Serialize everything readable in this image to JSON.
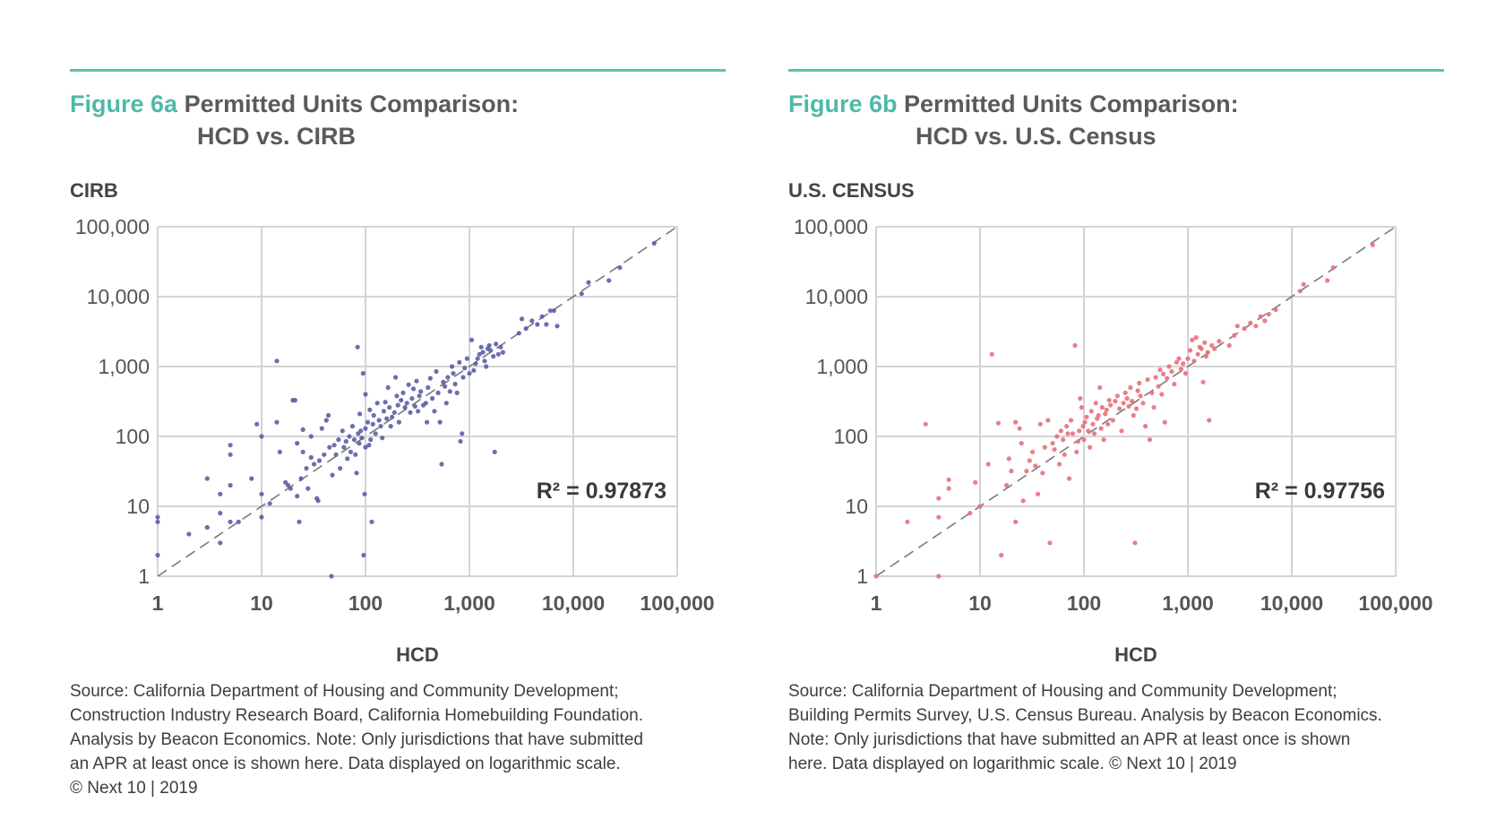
{
  "panels": [
    {
      "fig_label": "Figure 6a",
      "title_line1": "Permitted Units Comparison:",
      "title_line2": "HCD vs. CIRB",
      "source_lines": [
        "Source: California Department of Housing and Community Development;",
        "Construction Industry Research Board, California Homebuilding Foundation.",
        "Analysis by Beacon Economics. Note: Only jurisdictions that have submitted",
        "an APR at least once is shown here. Data displayed on logarithmic scale.",
        "© Next 10 | 2019"
      ]
    },
    {
      "fig_label": "Figure 6b",
      "title_line1": "Permitted Units Comparison:",
      "title_line2": "HCD vs. U.S. Census",
      "source_lines": [
        "Source: California Department of Housing and Community Development;",
        "Building Permits Survey, U.S. Census Bureau. Analysis by Beacon Economics.",
        "Note: Only jurisdictions that have submitted an APR at least once is shown",
        "here. Data displayed on logarithmic scale. © Next 10 | 2019"
      ]
    }
  ],
  "colors": {
    "accent": "#4fb9a8",
    "rule": "#5fbfb0",
    "series_a": "#5b5ea6",
    "series_b": "#e8707a",
    "grid": "#d4d4d4",
    "diagonal": "#7a7a7a"
  },
  "chart_data": [
    {
      "type": "scatter",
      "title": "Permitted Units Comparison: HCD vs. CIRB",
      "xlabel": "HCD",
      "ylabel": "CIRB",
      "xscale": "log",
      "yscale": "log",
      "xlim": [
        1,
        100000
      ],
      "ylim": [
        1,
        100000
      ],
      "x_ticks": [
        "1",
        "10",
        "100",
        "1,000",
        "10,000",
        "100,000"
      ],
      "y_ticks": [
        "1",
        "10",
        "100",
        "1,000",
        "10,000",
        "100,000"
      ],
      "grid": true,
      "reference_line": "y = x",
      "annotation": "R² = 0.97873",
      "points": [
        [
          1,
          7
        ],
        [
          1,
          6
        ],
        [
          1,
          2
        ],
        [
          2,
          4
        ],
        [
          3,
          25
        ],
        [
          3,
          5
        ],
        [
          4,
          15
        ],
        [
          4,
          3
        ],
        [
          5,
          75
        ],
        [
          5,
          55
        ],
        [
          5,
          20
        ],
        [
          5,
          6
        ],
        [
          6,
          6
        ],
        [
          4,
          8
        ],
        [
          8,
          25
        ],
        [
          9,
          150
        ],
        [
          10,
          100
        ],
        [
          10,
          7
        ],
        [
          10,
          15
        ],
        [
          12,
          11
        ],
        [
          14,
          1200
        ],
        [
          14,
          160
        ],
        [
          15,
          60
        ],
        [
          17,
          22
        ],
        [
          18,
          20
        ],
        [
          19,
          18
        ],
        [
          20,
          330
        ],
        [
          21,
          330
        ],
        [
          22,
          80
        ],
        [
          22,
          14
        ],
        [
          23,
          6
        ],
        [
          24,
          25
        ],
        [
          25,
          60
        ],
        [
          25,
          125
        ],
        [
          27,
          35
        ],
        [
          28,
          18
        ],
        [
          30,
          50
        ],
        [
          30,
          100
        ],
        [
          32,
          40
        ],
        [
          34,
          13
        ],
        [
          35,
          12
        ],
        [
          36,
          45
        ],
        [
          38,
          130
        ],
        [
          40,
          55
        ],
        [
          42,
          170
        ],
        [
          44,
          200
        ],
        [
          45,
          70
        ],
        [
          47,
          1
        ],
        [
          48,
          28
        ],
        [
          50,
          75
        ],
        [
          52,
          55
        ],
        [
          55,
          90
        ],
        [
          57,
          35
        ],
        [
          60,
          120
        ],
        [
          62,
          70
        ],
        [
          65,
          85
        ],
        [
          67,
          48
        ],
        [
          70,
          100
        ],
        [
          72,
          60
        ],
        [
          75,
          140
        ],
        [
          78,
          90
        ],
        [
          80,
          55
        ],
        [
          82,
          30
        ],
        [
          84,
          1900
        ],
        [
          85,
          110
        ],
        [
          87,
          80
        ],
        [
          88,
          210
        ],
        [
          90,
          120
        ],
        [
          92,
          95
        ],
        [
          95,
          800
        ],
        [
          96,
          2
        ],
        [
          98,
          15
        ],
        [
          100,
          70
        ],
        [
          100,
          400
        ],
        [
          100,
          130
        ],
        [
          105,
          160
        ],
        [
          108,
          75
        ],
        [
          110,
          240
        ],
        [
          112,
          90
        ],
        [
          115,
          6
        ],
        [
          118,
          150
        ],
        [
          120,
          200
        ],
        [
          125,
          110
        ],
        [
          130,
          300
        ],
        [
          135,
          170
        ],
        [
          140,
          140
        ],
        [
          145,
          95
        ],
        [
          150,
          230
        ],
        [
          155,
          310
        ],
        [
          160,
          180
        ],
        [
          165,
          500
        ],
        [
          170,
          260
        ],
        [
          175,
          140
        ],
        [
          180,
          190
        ],
        [
          190,
          220
        ],
        [
          195,
          700
        ],
        [
          200,
          380
        ],
        [
          205,
          280
        ],
        [
          210,
          160
        ],
        [
          220,
          330
        ],
        [
          230,
          420
        ],
        [
          240,
          260
        ],
        [
          250,
          300
        ],
        [
          260,
          550
        ],
        [
          270,
          220
        ],
        [
          280,
          350
        ],
        [
          290,
          480
        ],
        [
          300,
          270
        ],
        [
          310,
          620
        ],
        [
          320,
          230
        ],
        [
          330,
          380
        ],
        [
          340,
          440
        ],
        [
          360,
          280
        ],
        [
          380,
          300
        ],
        [
          390,
          160
        ],
        [
          400,
          500
        ],
        [
          420,
          680
        ],
        [
          440,
          350
        ],
        [
          460,
          230
        ],
        [
          480,
          850
        ],
        [
          500,
          420
        ],
        [
          520,
          160
        ],
        [
          540,
          40
        ],
        [
          560,
          600
        ],
        [
          580,
          520
        ],
        [
          600,
          300
        ],
        [
          620,
          700
        ],
        [
          650,
          440
        ],
        [
          680,
          1000
        ],
        [
          700,
          800
        ],
        [
          730,
          560
        ],
        [
          760,
          420
        ],
        [
          800,
          1150
        ],
        [
          820,
          85
        ],
        [
          850,
          110
        ],
        [
          870,
          700
        ],
        [
          900,
          950
        ],
        [
          950,
          1300
        ],
        [
          1000,
          800
        ],
        [
          1050,
          2400
        ],
        [
          1100,
          880
        ],
        [
          1150,
          1100
        ],
        [
          1200,
          1300
        ],
        [
          1250,
          1500
        ],
        [
          1300,
          1900
        ],
        [
          1350,
          1600
        ],
        [
          1400,
          1200
        ],
        [
          1450,
          1000
        ],
        [
          1500,
          1800
        ],
        [
          1550,
          2000
        ],
        [
          1600,
          1700
        ],
        [
          1700,
          1400
        ],
        [
          1750,
          60
        ],
        [
          1800,
          2100
        ],
        [
          1900,
          1500
        ],
        [
          2000,
          1900
        ],
        [
          2100,
          1600
        ],
        [
          3000,
          3000
        ],
        [
          3200,
          4800
        ],
        [
          3500,
          3500
        ],
        [
          4000,
          4500
        ],
        [
          4500,
          4000
        ],
        [
          5000,
          5200
        ],
        [
          5500,
          4000
        ],
        [
          6000,
          6300
        ],
        [
          6500,
          6300
        ],
        [
          7000,
          3800
        ],
        [
          12000,
          11000
        ],
        [
          14000,
          16000
        ],
        [
          22000,
          17000
        ],
        [
          28000,
          26000
        ],
        [
          60000,
          58000
        ]
      ]
    },
    {
      "type": "scatter",
      "title": "Permitted Units Comparison: HCD vs. U.S. Census",
      "xlabel": "HCD",
      "ylabel": "U.S. CENSUS",
      "xscale": "log",
      "yscale": "log",
      "xlim": [
        1,
        100000
      ],
      "ylim": [
        1,
        100000
      ],
      "x_ticks": [
        "1",
        "10",
        "100",
        "1,000",
        "10,000",
        "100,000"
      ],
      "y_ticks": [
        "1",
        "10",
        "100",
        "1,000",
        "10,000",
        "100,000"
      ],
      "grid": true,
      "reference_line": "y = x",
      "annotation": "R² = 0.97756",
      "points": [
        [
          1,
          1
        ],
        [
          2,
          6
        ],
        [
          3,
          150
        ],
        [
          4,
          1
        ],
        [
          4,
          7
        ],
        [
          4,
          13
        ],
        [
          5,
          18
        ],
        [
          5,
          24
        ],
        [
          8,
          8
        ],
        [
          9,
          22
        ],
        [
          10,
          10
        ],
        [
          12,
          40
        ],
        [
          13,
          1500
        ],
        [
          15,
          155
        ],
        [
          16,
          2
        ],
        [
          18,
          20
        ],
        [
          19,
          48
        ],
        [
          20,
          32
        ],
        [
          22,
          6
        ],
        [
          22,
          160
        ],
        [
          24,
          130
        ],
        [
          25,
          80
        ],
        [
          26,
          12
        ],
        [
          28,
          32
        ],
        [
          30,
          45
        ],
        [
          32,
          60
        ],
        [
          34,
          38
        ],
        [
          36,
          15
        ],
        [
          38,
          150
        ],
        [
          40,
          30
        ],
        [
          42,
          70
        ],
        [
          45,
          170
        ],
        [
          47,
          3
        ],
        [
          50,
          80
        ],
        [
          52,
          65
        ],
        [
          55,
          100
        ],
        [
          58,
          40
        ],
        [
          60,
          120
        ],
        [
          63,
          90
        ],
        [
          65,
          55
        ],
        [
          68,
          140
        ],
        [
          70,
          110
        ],
        [
          72,
          25
        ],
        [
          75,
          170
        ],
        [
          78,
          110
        ],
        [
          82,
          2000
        ],
        [
          85,
          60
        ],
        [
          88,
          85
        ],
        [
          90,
          120
        ],
        [
          92,
          350
        ],
        [
          95,
          260
        ],
        [
          98,
          140
        ],
        [
          100,
          90
        ],
        [
          102,
          160
        ],
        [
          106,
          190
        ],
        [
          110,
          120
        ],
        [
          114,
          70
        ],
        [
          118,
          230
        ],
        [
          122,
          150
        ],
        [
          126,
          110
        ],
        [
          130,
          300
        ],
        [
          134,
          180
        ],
        [
          138,
          200
        ],
        [
          142,
          500
        ],
        [
          146,
          130
        ],
        [
          150,
          260
        ],
        [
          155,
          90
        ],
        [
          160,
          210
        ],
        [
          165,
          240
        ],
        [
          170,
          150
        ],
        [
          175,
          330
        ],
        [
          180,
          280
        ],
        [
          190,
          170
        ],
        [
          200,
          320
        ],
        [
          210,
          380
        ],
        [
          220,
          250
        ],
        [
          230,
          120
        ],
        [
          240,
          300
        ],
        [
          250,
          420
        ],
        [
          260,
          350
        ],
        [
          270,
          270
        ],
        [
          280,
          500
        ],
        [
          290,
          320
        ],
        [
          300,
          200
        ],
        [
          310,
          3
        ],
        [
          320,
          250
        ],
        [
          330,
          450
        ],
        [
          340,
          580
        ],
        [
          350,
          380
        ],
        [
          370,
          300
        ],
        [
          390,
          140
        ],
        [
          410,
          650
        ],
        [
          430,
          90
        ],
        [
          450,
          420
        ],
        [
          470,
          260
        ],
        [
          490,
          700
        ],
        [
          520,
          520
        ],
        [
          540,
          900
        ],
        [
          560,
          400
        ],
        [
          580,
          780
        ],
        [
          600,
          160
        ],
        [
          630,
          680
        ],
        [
          660,
          1000
        ],
        [
          700,
          850
        ],
        [
          740,
          560
        ],
        [
          780,
          1150
        ],
        [
          820,
          1300
        ],
        [
          860,
          920
        ],
        [
          900,
          1100
        ],
        [
          950,
          800
        ],
        [
          1000,
          1300
        ],
        [
          1050,
          1700
        ],
        [
          1100,
          2400
        ],
        [
          1150,
          1200
        ],
        [
          1200,
          2600
        ],
        [
          1250,
          1500
        ],
        [
          1300,
          1900
        ],
        [
          1350,
          1800
        ],
        [
          1400,
          600
        ],
        [
          1450,
          2200
        ],
        [
          1500,
          1400
        ],
        [
          1550,
          1600
        ],
        [
          1600,
          170
        ],
        [
          1700,
          2000
        ],
        [
          1800,
          1800
        ],
        [
          2000,
          2300
        ],
        [
          2500,
          2000
        ],
        [
          2800,
          2800
        ],
        [
          3000,
          3800
        ],
        [
          3500,
          3500
        ],
        [
          4000,
          4200
        ],
        [
          4500,
          3800
        ],
        [
          5000,
          5200
        ],
        [
          5500,
          4500
        ],
        [
          6000,
          5600
        ],
        [
          7000,
          6500
        ],
        [
          12000,
          12000
        ],
        [
          13000,
          15000
        ],
        [
          22000,
          17000
        ],
        [
          25000,
          26000
        ],
        [
          60000,
          55000
        ]
      ]
    }
  ]
}
